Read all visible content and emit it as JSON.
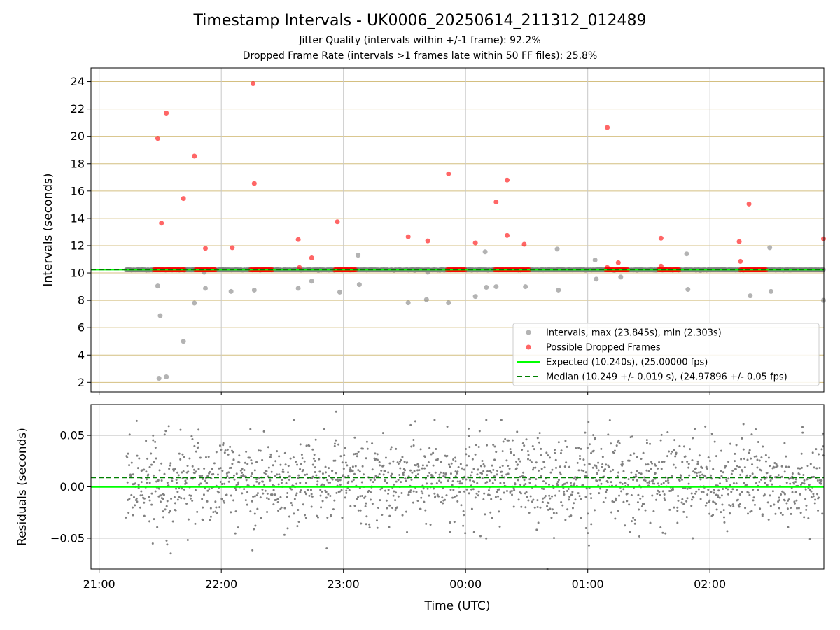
{
  "title": "Timestamp Intervals - UK0006_20250614_211312_012489",
  "subtitle_1": "Jitter Quality (intervals within +/-1 frame): 92.2%",
  "subtitle_2": "Dropped Frame Rate (intervals >1 frames late within 50 FF files): 25.8%",
  "colors": {
    "intervals": "#808080",
    "dropped": "#ff0000",
    "expected": "#00ff00",
    "median": "#008000",
    "hgrid_top": "#d4bf80",
    "vgrid": "#c8c8c8"
  },
  "chart_data": [
    {
      "type": "scatter",
      "name": "intervals-panel",
      "ylabel": "Intervals (seconds)",
      "xlabel": "",
      "xlim_hours": [
        20.933,
        26.933
      ],
      "ylim": [
        1.3,
        25.0
      ],
      "x_ticks": [
        {
          "v": 21,
          "label": "21:00"
        },
        {
          "v": 22,
          "label": "22:00"
        },
        {
          "v": 23,
          "label": "23:00"
        },
        {
          "v": 24,
          "label": "00:00"
        },
        {
          "v": 25,
          "label": "01:00"
        },
        {
          "v": 26,
          "label": "02:00"
        }
      ],
      "y_ticks": [
        2,
        4,
        6,
        8,
        10,
        12,
        14,
        16,
        18,
        20,
        22,
        24
      ],
      "expected_value": 10.24,
      "median_value": 10.249,
      "baseline_band": {
        "x_start_hour": 21.22,
        "value": 10.24
      },
      "normal_points": [
        [
          21.48,
          9.05
        ],
        [
          21.49,
          2.3
        ],
        [
          21.5,
          6.88
        ],
        [
          21.55,
          2.4
        ],
        [
          21.69,
          5.0
        ],
        [
          21.78,
          7.8
        ],
        [
          21.86,
          10.05
        ],
        [
          21.87,
          8.88
        ],
        [
          22.08,
          8.65
        ],
        [
          22.27,
          8.75
        ],
        [
          22.63,
          8.88
        ],
        [
          22.74,
          9.4
        ],
        [
          22.97,
          8.6
        ],
        [
          23.12,
          11.3
        ],
        [
          23.13,
          9.15
        ],
        [
          23.53,
          7.82
        ],
        [
          23.68,
          8.05
        ],
        [
          23.69,
          10.05
        ],
        [
          23.86,
          7.82
        ],
        [
          24.08,
          8.28
        ],
        [
          24.16,
          11.55
        ],
        [
          24.17,
          8.95
        ],
        [
          24.25,
          9.0
        ],
        [
          24.49,
          9.0
        ],
        [
          24.75,
          11.75
        ],
        [
          24.76,
          8.75
        ],
        [
          25.06,
          10.95
        ],
        [
          25.07,
          9.55
        ],
        [
          25.27,
          9.7
        ],
        [
          25.81,
          11.4
        ],
        [
          25.82,
          8.8
        ],
        [
          26.33,
          8.33
        ],
        [
          26.49,
          11.85
        ],
        [
          26.5,
          8.65
        ],
        [
          26.93,
          8.0
        ]
      ],
      "dropped_points": [
        [
          21.48,
          19.85
        ],
        [
          21.51,
          13.65
        ],
        [
          21.55,
          21.7
        ],
        [
          21.69,
          15.45
        ],
        [
          21.78,
          18.55
        ],
        [
          21.87,
          11.8
        ],
        [
          22.09,
          11.85
        ],
        [
          22.26,
          23.85
        ],
        [
          22.27,
          16.55
        ],
        [
          22.63,
          12.45
        ],
        [
          22.64,
          10.4
        ],
        [
          22.74,
          11.1
        ],
        [
          22.95,
          13.75
        ],
        [
          23.53,
          12.65
        ],
        [
          23.69,
          12.35
        ],
        [
          23.86,
          17.25
        ],
        [
          24.08,
          12.2
        ],
        [
          24.25,
          15.2
        ],
        [
          24.34,
          16.8
        ],
        [
          24.34,
          12.75
        ],
        [
          24.48,
          12.1
        ],
        [
          25.16,
          20.65
        ],
        [
          25.16,
          10.4
        ],
        [
          25.25,
          10.75
        ],
        [
          25.6,
          12.55
        ],
        [
          25.6,
          10.5
        ],
        [
          26.24,
          12.3
        ],
        [
          26.25,
          10.85
        ],
        [
          26.32,
          15.05
        ],
        [
          26.93,
          12.5
        ]
      ],
      "dropped_bands": [
        [
          21.45,
          21.7
        ],
        [
          21.79,
          21.95
        ],
        [
          22.24,
          22.42
        ],
        [
          22.93,
          23.1
        ],
        [
          23.85,
          24.0
        ],
        [
          24.24,
          24.52
        ],
        [
          25.15,
          25.33
        ],
        [
          25.58,
          25.75
        ],
        [
          26.25,
          26.46
        ]
      ],
      "legend": {
        "position": "lower right",
        "entries": [
          {
            "label": "Intervals, max (23.845s), min (2.303s)",
            "kind": "scatter-gray"
          },
          {
            "label": "Possible Dropped Frames",
            "kind": "scatter-red"
          },
          {
            "label": "Expected (10.240s), (25.00000 fps)",
            "kind": "line-green"
          },
          {
            "label": "Median (10.249 +/- 0.019 s), (24.97896 +/- 0.05 fps)",
            "kind": "dashed-darkgreen"
          }
        ]
      }
    },
    {
      "type": "scatter",
      "name": "residuals-panel",
      "ylabel": "Residuals (seconds)",
      "xlabel": "Time (UTC)",
      "xlim_hours": [
        20.933,
        26.933
      ],
      "ylim": [
        -0.08,
        0.08
      ],
      "y_ticks": [
        {
          "v": 0.05,
          "label": "0.05"
        },
        {
          "v": 0.0,
          "label": "0.00"
        },
        {
          "v": -0.05,
          "label": "−0.05"
        }
      ],
      "x_ticks": [
        {
          "v": 21,
          "label": "21:00"
        },
        {
          "v": 22,
          "label": "22:00"
        },
        {
          "v": 23,
          "label": "23:00"
        },
        {
          "v": 24,
          "label": "00:00"
        },
        {
          "v": 25,
          "label": "01:00"
        },
        {
          "v": 26,
          "label": "02:00"
        }
      ],
      "expected_value": 0.0,
      "median_value": 0.009,
      "residual_spread": {
        "x_start_hour": 21.22,
        "x_end_hour": 26.93,
        "mean": 0.006,
        "sd": 0.021,
        "approx_count": 1700
      },
      "outliers": [
        [
          22.94,
          0.073
        ],
        [
          25.0,
          -0.045
        ],
        [
          25.01,
          -0.057
        ],
        [
          24.67,
          -0.08
        ],
        [
          25.86,
          -0.05
        ],
        [
          21.57,
          0.059
        ],
        [
          23.55,
          0.06
        ]
      ]
    }
  ]
}
